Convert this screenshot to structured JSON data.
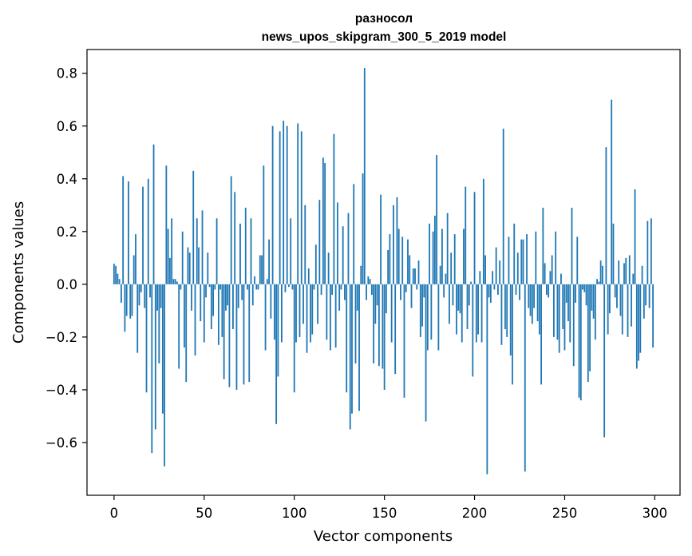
{
  "chart_data": {
    "type": "bar",
    "title_line1": "разносол",
    "title_line2": "news_upos_skipgram_300_5_2019 model",
    "xlabel": "Vector components",
    "ylabel": "Components values",
    "xlim": [
      -15,
      314
    ],
    "ylim": [
      -0.8,
      0.89
    ],
    "xticks": [
      0,
      50,
      100,
      150,
      200,
      250,
      300
    ],
    "xtick_labels": [
      "0",
      "50",
      "100",
      "150",
      "200",
      "250",
      "300"
    ],
    "yticks": [
      -0.6,
      -0.4,
      -0.2,
      0.0,
      0.2,
      0.4,
      0.6,
      0.8
    ],
    "ytick_labels": [
      "−0.6",
      "−0.4",
      "−0.2",
      "0.0",
      "0.2",
      "0.4",
      "0.6",
      "0.8"
    ],
    "bar_color": "#1f77b4",
    "grid": false,
    "values": [
      0.078,
      0.07,
      0.04,
      0.02,
      -0.07,
      0.41,
      -0.18,
      -0.12,
      0.39,
      -0.13,
      -0.12,
      0.11,
      0.19,
      -0.26,
      -0.08,
      -0.03,
      0.37,
      -0.09,
      -0.41,
      0.4,
      -0.05,
      -0.64,
      0.53,
      -0.55,
      -0.1,
      -0.3,
      -0.09,
      -0.49,
      -0.69,
      0.45,
      0.21,
      0.1,
      0.25,
      0.02,
      0.02,
      0.01,
      -0.32,
      -0.02,
      0.2,
      -0.24,
      -0.37,
      0.14,
      0.12,
      -0.1,
      0.43,
      -0.27,
      0.25,
      0.14,
      -0.14,
      0.28,
      -0.22,
      -0.05,
      0.12,
      -0.01,
      -0.17,
      -0.12,
      -0.02,
      0.25,
      -0.23,
      -0.02,
      -0.2,
      -0.36,
      -0.1,
      -0.08,
      -0.39,
      0.41,
      -0.17,
      0.35,
      -0.4,
      -0.09,
      0.23,
      -0.06,
      -0.38,
      0.29,
      -0.02,
      -0.37,
      0.25,
      -0.08,
      0.03,
      -0.02,
      -0.02,
      0.11,
      0.11,
      0.45,
      -0.25,
      0.02,
      0.17,
      -0.13,
      0.6,
      -0.21,
      -0.53,
      -0.35,
      0.58,
      -0.22,
      0.62,
      -0.03,
      0.6,
      -0.01,
      0.25,
      -0.02,
      -0.41,
      -0.22,
      0.61,
      -0.2,
      0.58,
      -0.15,
      0.3,
      -0.26,
      0.06,
      -0.22,
      -0.19,
      -0.02,
      0.15,
      -0.15,
      0.32,
      -0.04,
      0.48,
      0.46,
      -0.21,
      0.12,
      -0.25,
      -0.04,
      0.57,
      -0.24,
      0.31,
      -0.1,
      -0.02,
      0.22,
      -0.06,
      -0.41,
      0.27,
      -0.55,
      -0.49,
      0.38,
      -0.3,
      -0.1,
      -0.48,
      0.07,
      0.42,
      0.82,
      -0.06,
      0.03,
      0.02,
      -0.04,
      -0.3,
      -0.15,
      -0.08,
      -0.31,
      0.34,
      -0.32,
      -0.4,
      -0.11,
      0.13,
      0.19,
      -0.22,
      0.3,
      -0.34,
      0.33,
      0.21,
      -0.06,
      0.18,
      -0.43,
      -0.03,
      0.17,
      0.11,
      -0.09,
      0.06,
      0.06,
      -0.02,
      0.09,
      -0.2,
      -0.16,
      -0.05,
      -0.52,
      -0.25,
      0.23,
      -0.21,
      0.2,
      0.26,
      0.49,
      -0.25,
      0.07,
      0.21,
      -0.05,
      0.04,
      0.27,
      -0.15,
      0.12,
      -0.08,
      0.19,
      -0.19,
      -0.1,
      -0.11,
      -0.22,
      0.21,
      0.37,
      -0.17,
      -0.08,
      0.01,
      -0.35,
      0.35,
      -0.22,
      -0.19,
      0.05,
      -0.22,
      0.4,
      0.11,
      -0.72,
      -0.05,
      -0.07,
      0.05,
      -0.02,
      0.14,
      -0.04,
      0.09,
      -0.23,
      0.59,
      -0.17,
      -0.2,
      0.18,
      -0.27,
      -0.38,
      0.23,
      -0.04,
      0.12,
      -0.06,
      0.17,
      0.17,
      -0.71,
      0.19,
      -0.09,
      -0.12,
      -0.15,
      -0.09,
      0.2,
      -0.14,
      -0.19,
      -0.38,
      0.29,
      0.08,
      -0.04,
      -0.05,
      0.05,
      0.11,
      -0.2,
      0.2,
      -0.21,
      -0.26,
      0.04,
      -0.17,
      -0.25,
      -0.07,
      -0.14,
      -0.22,
      0.29,
      -0.31,
      -0.07,
      0.18,
      -0.43,
      -0.44,
      -0.02,
      -0.03,
      -0.08,
      -0.37,
      -0.33,
      -0.1,
      -0.13,
      -0.21,
      0.02,
      0.01,
      0.09,
      0.07,
      -0.58,
      0.52,
      -0.19,
      -0.11,
      0.7,
      0.23,
      -0.05,
      -0.09,
      0.09,
      -0.12,
      -0.19,
      0.08,
      0.1,
      -0.2,
      0.11,
      -0.16,
      0.04,
      0.36,
      -0.32,
      -0.29,
      -0.26,
      0.07,
      -0.13,
      -0.08,
      0.24,
      -0.09,
      0.25,
      -0.24
    ]
  }
}
